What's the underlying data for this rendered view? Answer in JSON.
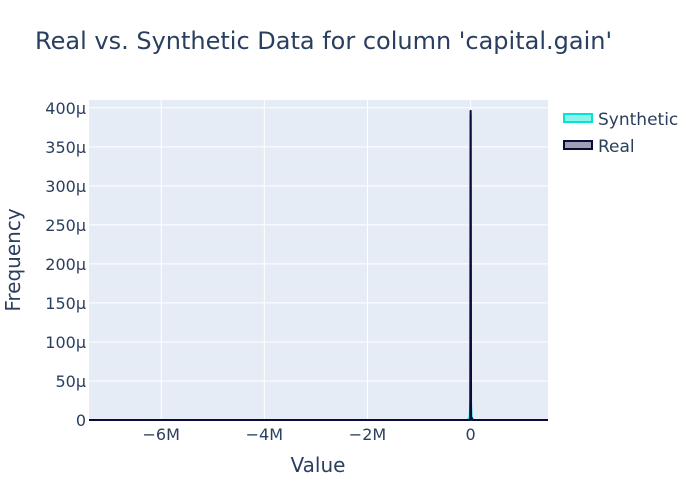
{
  "chart_data": {
    "type": "area",
    "title": "Real vs. Synthetic Data for column 'capital.gain'",
    "xlabel": "Value",
    "ylabel": "Frequency",
    "xlim": [
      -7400000,
      1500000
    ],
    "ylim": [
      0,
      0.00041
    ],
    "x_ticks": [
      {
        "value": -6000000,
        "label": "−6M"
      },
      {
        "value": -4000000,
        "label": "−4M"
      },
      {
        "value": -2000000,
        "label": "−2M"
      },
      {
        "value": 0,
        "label": "0"
      }
    ],
    "y_ticks": [
      {
        "value": 0,
        "label": "0"
      },
      {
        "value": 5e-05,
        "label": "50µ"
      },
      {
        "value": 0.0001,
        "label": "100µ"
      },
      {
        "value": 0.00015,
        "label": "150µ"
      },
      {
        "value": 0.0002,
        "label": "200µ"
      },
      {
        "value": 0.00025,
        "label": "250µ"
      },
      {
        "value": 0.0003,
        "label": "300µ"
      },
      {
        "value": 0.00035,
        "label": "350µ"
      },
      {
        "value": 0.0004,
        "label": "400µ"
      }
    ],
    "grid": true,
    "legend_position": "top-right",
    "series": [
      {
        "name": "Synthetic",
        "color": "#00e6d2",
        "fill": "rgba(0,230,210,0.45)",
        "points": [
          [
            -7400000,
            0
          ],
          [
            -60000,
            0
          ],
          [
            -20000,
            3e-06
          ],
          [
            -5000,
            2.4e-05
          ],
          [
            0,
            2.6e-05
          ],
          [
            5000,
            2.4e-05
          ],
          [
            20000,
            3e-06
          ],
          [
            60000,
            0
          ],
          [
            1500000,
            0
          ]
        ]
      },
      {
        "name": "Real",
        "color": "#0b0b3b",
        "fill": "rgba(40,40,90,0.45)",
        "points": [
          [
            -7400000,
            0
          ],
          [
            -8000,
            0
          ],
          [
            -2000,
            0.00039
          ],
          [
            0,
            0.000396
          ],
          [
            2000,
            0.00039
          ],
          [
            8000,
            0
          ],
          [
            20000,
            3e-06
          ],
          [
            35000,
            0
          ],
          [
            1500000,
            0
          ]
        ]
      }
    ]
  }
}
